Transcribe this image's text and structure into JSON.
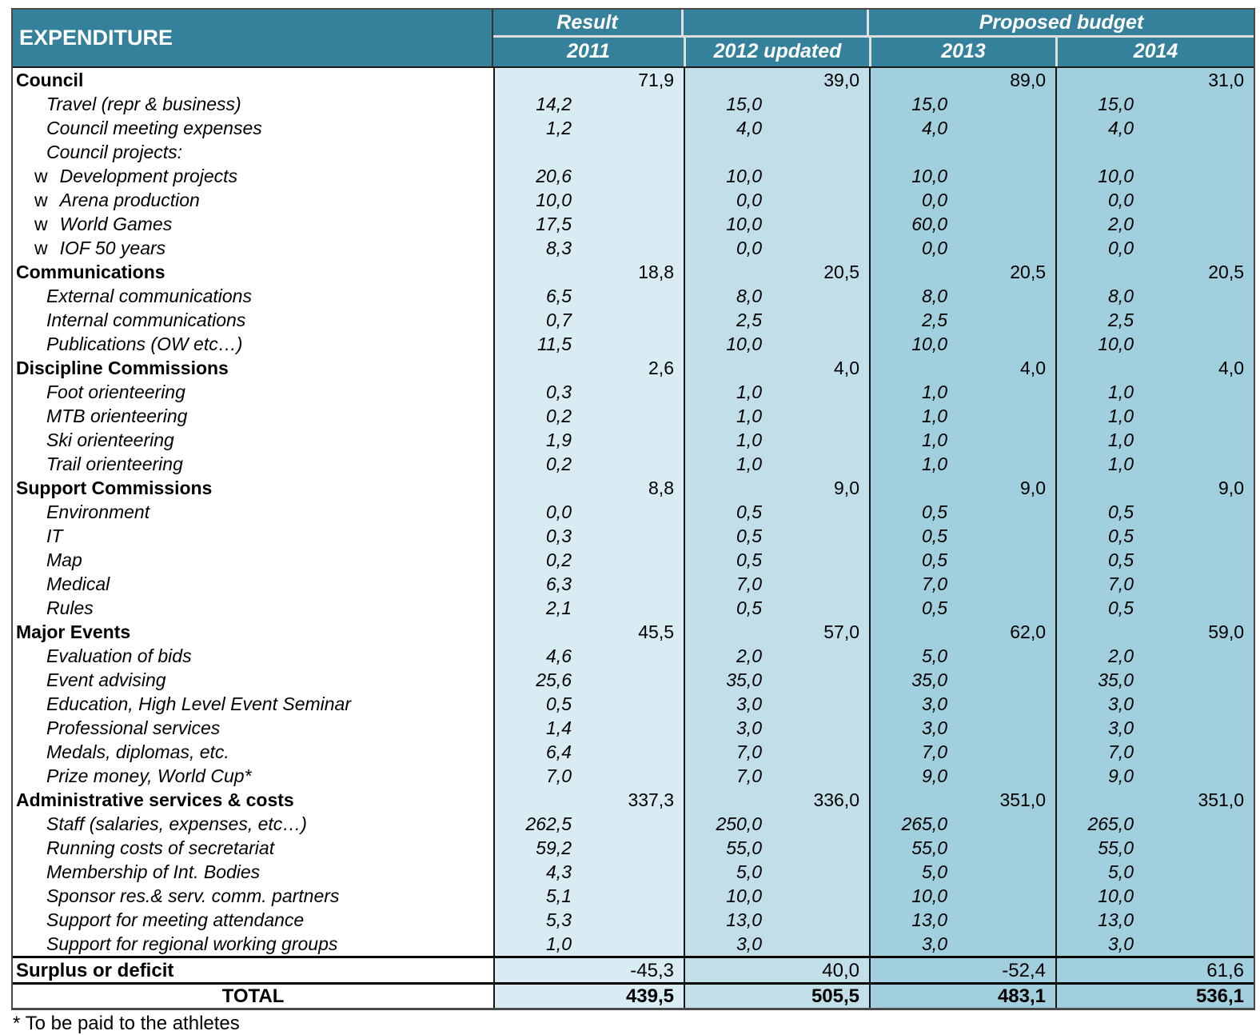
{
  "header": {
    "expenditure_label": "EXPENDITURE",
    "result_label": "Result",
    "proposed_budget_label": "Proposed budget",
    "year_labels": [
      "2011",
      "2012 updated",
      "2013",
      "2014"
    ]
  },
  "colors": {
    "header_teal": "#35809a",
    "col_2011": "#d9ecf3",
    "col_2012": "#c2dfe9",
    "col_2013": "#a2cfdd",
    "col_2014": "#a2cfdd"
  },
  "table": {
    "rows": [
      {
        "label": "Council",
        "type": "cat",
        "values": [
          "71,9",
          "39,0",
          "89,0",
          "31,0"
        ]
      },
      {
        "label": "Travel (repr & business)",
        "type": "det",
        "values": [
          "14,2",
          "15,0",
          "15,0",
          "15,0"
        ]
      },
      {
        "label": "Council meeting expenses",
        "type": "det",
        "values": [
          "1,2",
          "4,0",
          "4,0",
          "4,0"
        ]
      },
      {
        "label": "Council projects:",
        "type": "det",
        "values": [
          "",
          "",
          "",
          ""
        ]
      },
      {
        "label": "Development projects",
        "type": "wdet",
        "prefix": "w",
        "values": [
          "20,6",
          "10,0",
          "10,0",
          "10,0"
        ]
      },
      {
        "label": "Arena production",
        "type": "wdet",
        "prefix": "w",
        "values": [
          "10,0",
          "0,0",
          "0,0",
          "0,0"
        ]
      },
      {
        "label": "World Games",
        "type": "wdet",
        "prefix": "w",
        "values": [
          "17,5",
          "10,0",
          "60,0",
          "2,0"
        ]
      },
      {
        "label": "IOF 50 years",
        "type": "wdet",
        "prefix": "w",
        "values": [
          "8,3",
          "0,0",
          "0,0",
          "0,0"
        ]
      },
      {
        "label": "Communications",
        "type": "cat",
        "values": [
          "18,8",
          "20,5",
          "20,5",
          "20,5"
        ]
      },
      {
        "label": "External communications",
        "type": "det",
        "values": [
          "6,5",
          "8,0",
          "8,0",
          "8,0"
        ]
      },
      {
        "label": "Internal communications",
        "type": "det",
        "values": [
          "0,7",
          "2,5",
          "2,5",
          "2,5"
        ]
      },
      {
        "label": "Publications (OW etc…)",
        "type": "det",
        "values": [
          "11,5",
          "10,0",
          "10,0",
          "10,0"
        ]
      },
      {
        "label": "Discipline Commissions",
        "type": "cat",
        "values": [
          "2,6",
          "4,0",
          "4,0",
          "4,0"
        ]
      },
      {
        "label": "Foot orienteering",
        "type": "det",
        "values": [
          "0,3",
          "1,0",
          "1,0",
          "1,0"
        ]
      },
      {
        "label": "MTB orienteering",
        "type": "det",
        "values": [
          "0,2",
          "1,0",
          "1,0",
          "1,0"
        ]
      },
      {
        "label": "Ski orienteering",
        "type": "det",
        "values": [
          "1,9",
          "1,0",
          "1,0",
          "1,0"
        ]
      },
      {
        "label": "Trail orienteering",
        "type": "det",
        "values": [
          "0,2",
          "1,0",
          "1,0",
          "1,0"
        ]
      },
      {
        "label": "Support Commissions",
        "type": "cat",
        "values": [
          "8,8",
          "9,0",
          "9,0",
          "9,0"
        ]
      },
      {
        "label": "Environment",
        "type": "det",
        "values": [
          "0,0",
          "0,5",
          "0,5",
          "0,5"
        ]
      },
      {
        "label": "IT",
        "type": "det",
        "values": [
          "0,3",
          "0,5",
          "0,5",
          "0,5"
        ]
      },
      {
        "label": "Map",
        "type": "det",
        "values": [
          "0,2",
          "0,5",
          "0,5",
          "0,5"
        ]
      },
      {
        "label": "Medical",
        "type": "det",
        "values": [
          "6,3",
          "7,0",
          "7,0",
          "7,0"
        ]
      },
      {
        "label": "Rules",
        "type": "det",
        "values": [
          "2,1",
          "0,5",
          "0,5",
          "0,5"
        ]
      },
      {
        "label": "Major Events",
        "type": "cat",
        "values": [
          "45,5",
          "57,0",
          "62,0",
          "59,0"
        ]
      },
      {
        "label": "Evaluation of bids",
        "type": "det",
        "values": [
          "4,6",
          "2,0",
          "5,0",
          "2,0"
        ]
      },
      {
        "label": "Event advising",
        "type": "det",
        "values": [
          "25,6",
          "35,0",
          "35,0",
          "35,0"
        ]
      },
      {
        "label": "Education, High Level Event Seminar",
        "type": "det",
        "values": [
          "0,5",
          "3,0",
          "3,0",
          "3,0"
        ]
      },
      {
        "label": "Professional services",
        "type": "det",
        "values": [
          "1,4",
          "3,0",
          "3,0",
          "3,0"
        ]
      },
      {
        "label": "Medals, diplomas, etc.",
        "type": "det",
        "values": [
          "6,4",
          "7,0",
          "7,0",
          "7,0"
        ]
      },
      {
        "label": "Prize money, World Cup*",
        "type": "det",
        "values": [
          "7,0",
          "7,0",
          "9,0",
          "9,0"
        ]
      },
      {
        "label": "Administrative services & costs",
        "type": "cat",
        "values": [
          "337,3",
          "336,0",
          "351,0",
          "351,0"
        ]
      },
      {
        "label": "Staff (salaries, expenses, etc…)",
        "type": "det",
        "values": [
          "262,5",
          "250,0",
          "265,0",
          "265,0"
        ]
      },
      {
        "label": "Running costs of secretariat",
        "type": "det",
        "values": [
          "59,2",
          "55,0",
          "55,0",
          "55,0"
        ]
      },
      {
        "label": "Membership of Int. Bodies",
        "type": "det",
        "values": [
          "4,3",
          "5,0",
          "5,0",
          "5,0"
        ]
      },
      {
        "label": "Sponsor res.& serv. comm. partners",
        "type": "det",
        "values": [
          "5,1",
          "10,0",
          "10,0",
          "10,0"
        ]
      },
      {
        "label": "Support for meeting attendance",
        "type": "det",
        "values": [
          "5,3",
          "13,0",
          "13,0",
          "13,0"
        ]
      },
      {
        "label": "Support for regional working groups",
        "type": "det",
        "values": [
          "1,0",
          "3,0",
          "3,0",
          "3,0"
        ]
      }
    ],
    "surplus_row": {
      "label": "Surplus or deficit",
      "values": [
        "-45,3",
        "40,0",
        "-52,4",
        "61,6"
      ]
    },
    "total_row": {
      "label": "TOTAL",
      "values": [
        "439,5",
        "505,5",
        "483,1",
        "536,1"
      ]
    }
  },
  "page": {
    "footnote": "* To be paid to the athletes"
  }
}
